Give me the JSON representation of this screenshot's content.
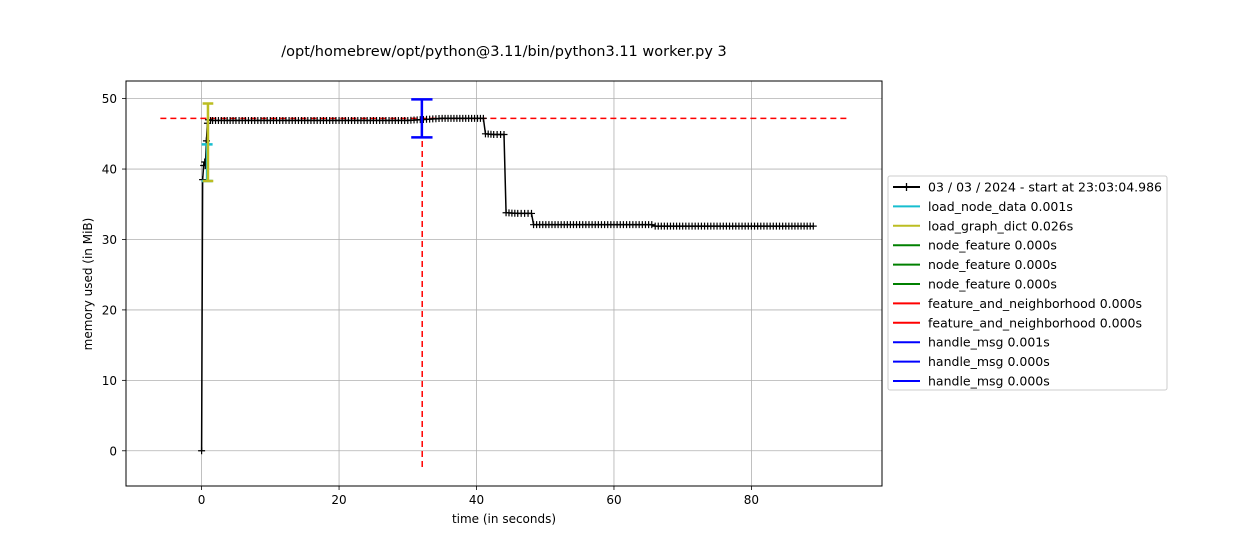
{
  "chart_data": {
    "type": "line",
    "title": "/opt/homebrew/opt/python@3.11/bin/python3.11 worker.py 3",
    "xlabel": "time (in seconds)",
    "ylabel": "memory used (in MiB)",
    "xlim": [
      -11,
      99
    ],
    "ylim": [
      -5,
      52.5
    ],
    "xticks": [
      0,
      20,
      40,
      60,
      80
    ],
    "yticks": [
      0,
      10,
      20,
      30,
      40,
      50
    ],
    "xtick_labels": [
      "0",
      "20",
      "40",
      "60",
      "80"
    ],
    "ytick_labels": [
      "0",
      "10",
      "20",
      "30",
      "40",
      "50"
    ],
    "grid": true,
    "legend_position": "right",
    "series": [
      {
        "name": "03 / 03 / 2024 - start at 23:03:04.986",
        "color": "#000000",
        "marker": "plus",
        "x": [
          0.0,
          0.15,
          0.3,
          0.45,
          0.55,
          0.7,
          0.85,
          1.0,
          1.3,
          1.6,
          5,
          10,
          15,
          20,
          25,
          30,
          35,
          38,
          41.0,
          41.3,
          42.5,
          43.5,
          44.0,
          44.3,
          46,
          47.5,
          48.0,
          48.3,
          55,
          60,
          65.5,
          66.0,
          70,
          75,
          80,
          85,
          89.0
        ],
        "y": [
          0.0,
          38.5,
          40.5,
          41.0,
          40.5,
          44.0,
          46.5,
          47.0,
          46.9,
          46.9,
          46.9,
          46.9,
          46.9,
          46.9,
          46.9,
          46.9,
          47.2,
          47.2,
          47.2,
          45.0,
          44.9,
          44.9,
          44.9,
          33.8,
          33.7,
          33.7,
          33.7,
          32.1,
          32.1,
          32.1,
          32.1,
          31.9,
          31.9,
          31.9,
          31.9,
          31.9,
          31.9
        ]
      }
    ],
    "function_markers": [
      {
        "name": "load_node_data 0.001s",
        "color": "#17becf",
        "x_start": 0.0,
        "x_end": 1.6,
        "y_low": 38.3,
        "y_high": 43.5
      },
      {
        "name": "load_graph_dict 0.026s",
        "color": "#bcbd22",
        "x_start": 0.15,
        "x_end": 1.7,
        "y_low": 38.3,
        "y_high": 49.3
      },
      {
        "name": "node_feature 0.000s",
        "color": "#008000"
      },
      {
        "name": "node_feature 0.000s",
        "color": "#008000"
      },
      {
        "name": "node_feature 0.000s",
        "color": "#008000"
      },
      {
        "name": "feature_and_neighborhood 0.000s",
        "color": "#ff0000"
      },
      {
        "name": "feature_and_neighborhood 0.000s",
        "color": "#ff0000"
      },
      {
        "name": "handle_msg 0.001s",
        "color": "#0000ff",
        "x_start": 30.5,
        "x_end": 33.6,
        "y_low": 44.5,
        "y_high": 49.9
      },
      {
        "name": "handle_msg 0.000s",
        "color": "#0000ff"
      },
      {
        "name": "handle_msg 0.000s",
        "color": "#0000ff"
      }
    ],
    "reference_lines": [
      {
        "orientation": "horizontal",
        "value": 47.2,
        "color": "#ff0000",
        "style": "dashed",
        "from": -6,
        "to": 94
      },
      {
        "orientation": "vertical",
        "value": 32.1,
        "color": "#ff0000",
        "style": "dashed",
        "from": -2.3,
        "to": 49.5
      }
    ]
  }
}
